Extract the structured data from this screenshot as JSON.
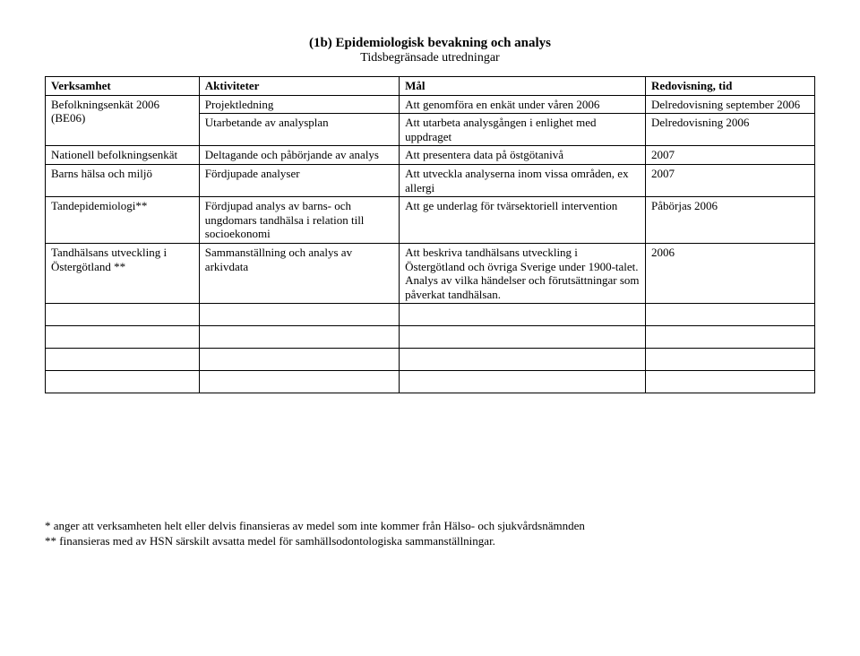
{
  "header": {
    "title": "(1b) Epidemiologisk bevakning och analys",
    "subtitle": "Tidsbegränsade utredningar"
  },
  "table": {
    "columns": [
      "Verksamhet",
      "Aktiviteter",
      "Mål",
      "Redovisning, tid"
    ],
    "rows": [
      {
        "verksamhet": "Befolkningsenkät 2006 (BE06)",
        "aktiviteter": "Projektledning",
        "mal": "Att genomföra en enkät under våren 2006",
        "redovisning": "Delredovisning september 2006"
      },
      {
        "verksamhet": "",
        "aktiviteter": "Utarbetande av analysplan",
        "mal": "Att utarbeta analysgången i enlighet med uppdraget",
        "redovisning": "Delredovisning 2006"
      },
      {
        "verksamhet": "Nationell befolkningsenkät",
        "aktiviteter": "Deltagande och påbörjande av analys",
        "mal": "Att presentera data på östgötanivå",
        "redovisning": "2007"
      },
      {
        "verksamhet": "Barns hälsa och miljö",
        "aktiviteter": "Fördjupade analyser",
        "mal": "Att utveckla analyserna inom vissa områden, ex allergi",
        "redovisning": "2007"
      },
      {
        "verksamhet": "Tandepidemiologi**",
        "aktiviteter": "Fördjupad analys av barns- och ungdomars tandhälsa i relation till socioekonomi",
        "mal": "Att ge underlag för tvärsektoriell intervention",
        "redovisning": "Påbörjas 2006"
      },
      {
        "verksamhet": "Tandhälsans utveckling i Östergötland **",
        "aktiviteter": "Sammanställning och analys av arkivdata",
        "mal": "Att beskriva tandhälsans utveckling i Östergötland och övriga Sverige under 1900-talet. Analys av vilka händelser och förutsättningar som påverkat tandhälsan.",
        "redovisning": "2006"
      }
    ]
  },
  "footnotes": {
    "line1": "* anger att verksamheten helt eller delvis finansieras av medel som inte kommer från Hälso- och sjukvårdsnämnden",
    "line2": "** finansieras med av HSN särskilt avsatta medel för samhällsodontologiska sammanställningar."
  }
}
